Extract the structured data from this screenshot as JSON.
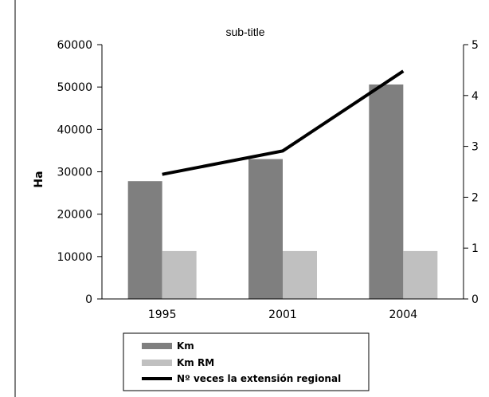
{
  "chart_data": {
    "type": "bar",
    "title": "",
    "subtitle": "sub-title",
    "ylabel": "Ha",
    "y2label": "",
    "categories": [
      "1995",
      "2001",
      "2004"
    ],
    "ylim": [
      0,
      60000
    ],
    "yticks": [
      0,
      10000,
      20000,
      30000,
      40000,
      50000,
      60000
    ],
    "y2lim": [
      0,
      5
    ],
    "y2ticks": [
      0,
      1,
      2,
      3,
      4,
      5
    ],
    "series": [
      {
        "name": "Km",
        "kind": "bar",
        "axis": "left",
        "color": "#7f7f7f",
        "values": [
          27800,
          33000,
          50600
        ]
      },
      {
        "name": "Km RM",
        "kind": "bar",
        "axis": "left",
        "color": "#c0c0c0",
        "values": [
          11300,
          11300,
          11300
        ]
      },
      {
        "name": "Nº veces la extensión regional",
        "kind": "line",
        "axis": "right",
        "color": "#000000",
        "values": [
          2.45,
          2.91,
          4.48
        ]
      }
    ],
    "legend_position": "bottom-center",
    "grid": false
  }
}
